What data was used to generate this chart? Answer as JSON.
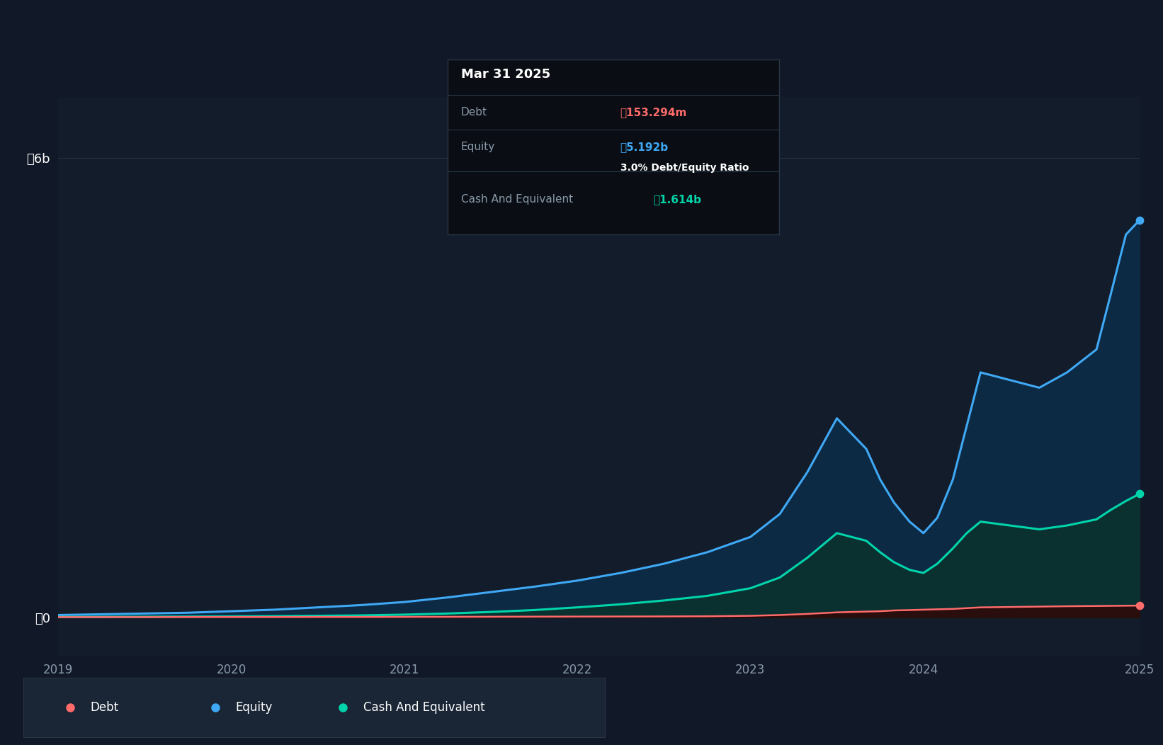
{
  "bg_color": "#111827",
  "plot_bg_color": "#131c2b",
  "grid_color": "#253040",
  "debt_color": "#ff6b6b",
  "equity_color": "#3fa9f5",
  "cash_color": "#00d4aa",
  "equity_fill_color": "#0d2a45",
  "cash_fill_color": "#0a3030",
  "debt_fill_color": "#2a0d0d",
  "tooltip_bg": "#0a0e14",
  "tooltip_title": "Mar 31 2025",
  "tooltip_debt_label": "Debt",
  "tooltip_debt_val": "₼153.294m",
  "tooltip_equity_label": "Equity",
  "tooltip_equity_val": "₼5.192b",
  "tooltip_ratio": "3.0% Debt/Equity Ratio",
  "tooltip_cash_label": "Cash And Equivalent",
  "tooltip_cash_val": "₼1.614b",
  "legend_items": [
    {
      "label": "Debt",
      "color": "#ff6b6b"
    },
    {
      "label": "Equity",
      "color": "#3fa9f5"
    },
    {
      "label": "Cash And Equivalent",
      "color": "#00d4aa"
    }
  ],
  "ylim_low": -500000000,
  "ylim_high": 6800000000,
  "ytick_vals": [
    0,
    6000000000
  ],
  "ytick_labels": [
    "₼0",
    "₼6b"
  ],
  "xtick_positions": [
    0,
    1,
    2,
    3,
    4,
    5,
    6.25
  ],
  "xtick_labels": [
    "2019",
    "2020",
    "2021",
    "2022",
    "2023",
    "2024",
    "2025"
  ],
  "time_points": [
    0.0,
    0.25,
    0.5,
    0.75,
    1.0,
    1.25,
    1.5,
    1.75,
    2.0,
    2.25,
    2.5,
    2.75,
    3.0,
    3.25,
    3.5,
    3.75,
    4.0,
    4.17,
    4.33,
    4.5,
    4.67,
    4.75,
    4.83,
    4.92,
    5.0,
    5.08,
    5.17,
    5.25,
    5.33,
    5.5,
    5.67,
    5.83,
    6.0,
    6.08,
    6.17,
    6.25
  ],
  "equity_values": [
    30000000,
    40000000,
    50000000,
    60000000,
    80000000,
    100000000,
    130000000,
    160000000,
    200000000,
    260000000,
    330000000,
    400000000,
    480000000,
    580000000,
    700000000,
    850000000,
    1050000000,
    1350000000,
    1900000000,
    2600000000,
    2200000000,
    1800000000,
    1500000000,
    1250000000,
    1100000000,
    1300000000,
    1800000000,
    2500000000,
    3200000000,
    3100000000,
    3000000000,
    3200000000,
    3500000000,
    4200000000,
    5000000000,
    5192000000
  ],
  "cash_values": [
    5000000,
    6000000,
    8000000,
    10000000,
    12000000,
    15000000,
    20000000,
    25000000,
    35000000,
    50000000,
    70000000,
    95000000,
    130000000,
    170000000,
    220000000,
    280000000,
    380000000,
    520000000,
    780000000,
    1100000000,
    1000000000,
    850000000,
    720000000,
    620000000,
    580000000,
    700000000,
    900000000,
    1100000000,
    1250000000,
    1200000000,
    1150000000,
    1200000000,
    1280000000,
    1400000000,
    1520000000,
    1614000000
  ],
  "debt_values": [
    3000000,
    3000000,
    3000000,
    4000000,
    4000000,
    4000000,
    5000000,
    5000000,
    6000000,
    7000000,
    8000000,
    9000000,
    10000000,
    11000000,
    12000000,
    14000000,
    20000000,
    30000000,
    45000000,
    65000000,
    75000000,
    80000000,
    90000000,
    95000000,
    100000000,
    105000000,
    110000000,
    120000000,
    130000000,
    135000000,
    140000000,
    145000000,
    148000000,
    150000000,
    152000000,
    153294000
  ]
}
